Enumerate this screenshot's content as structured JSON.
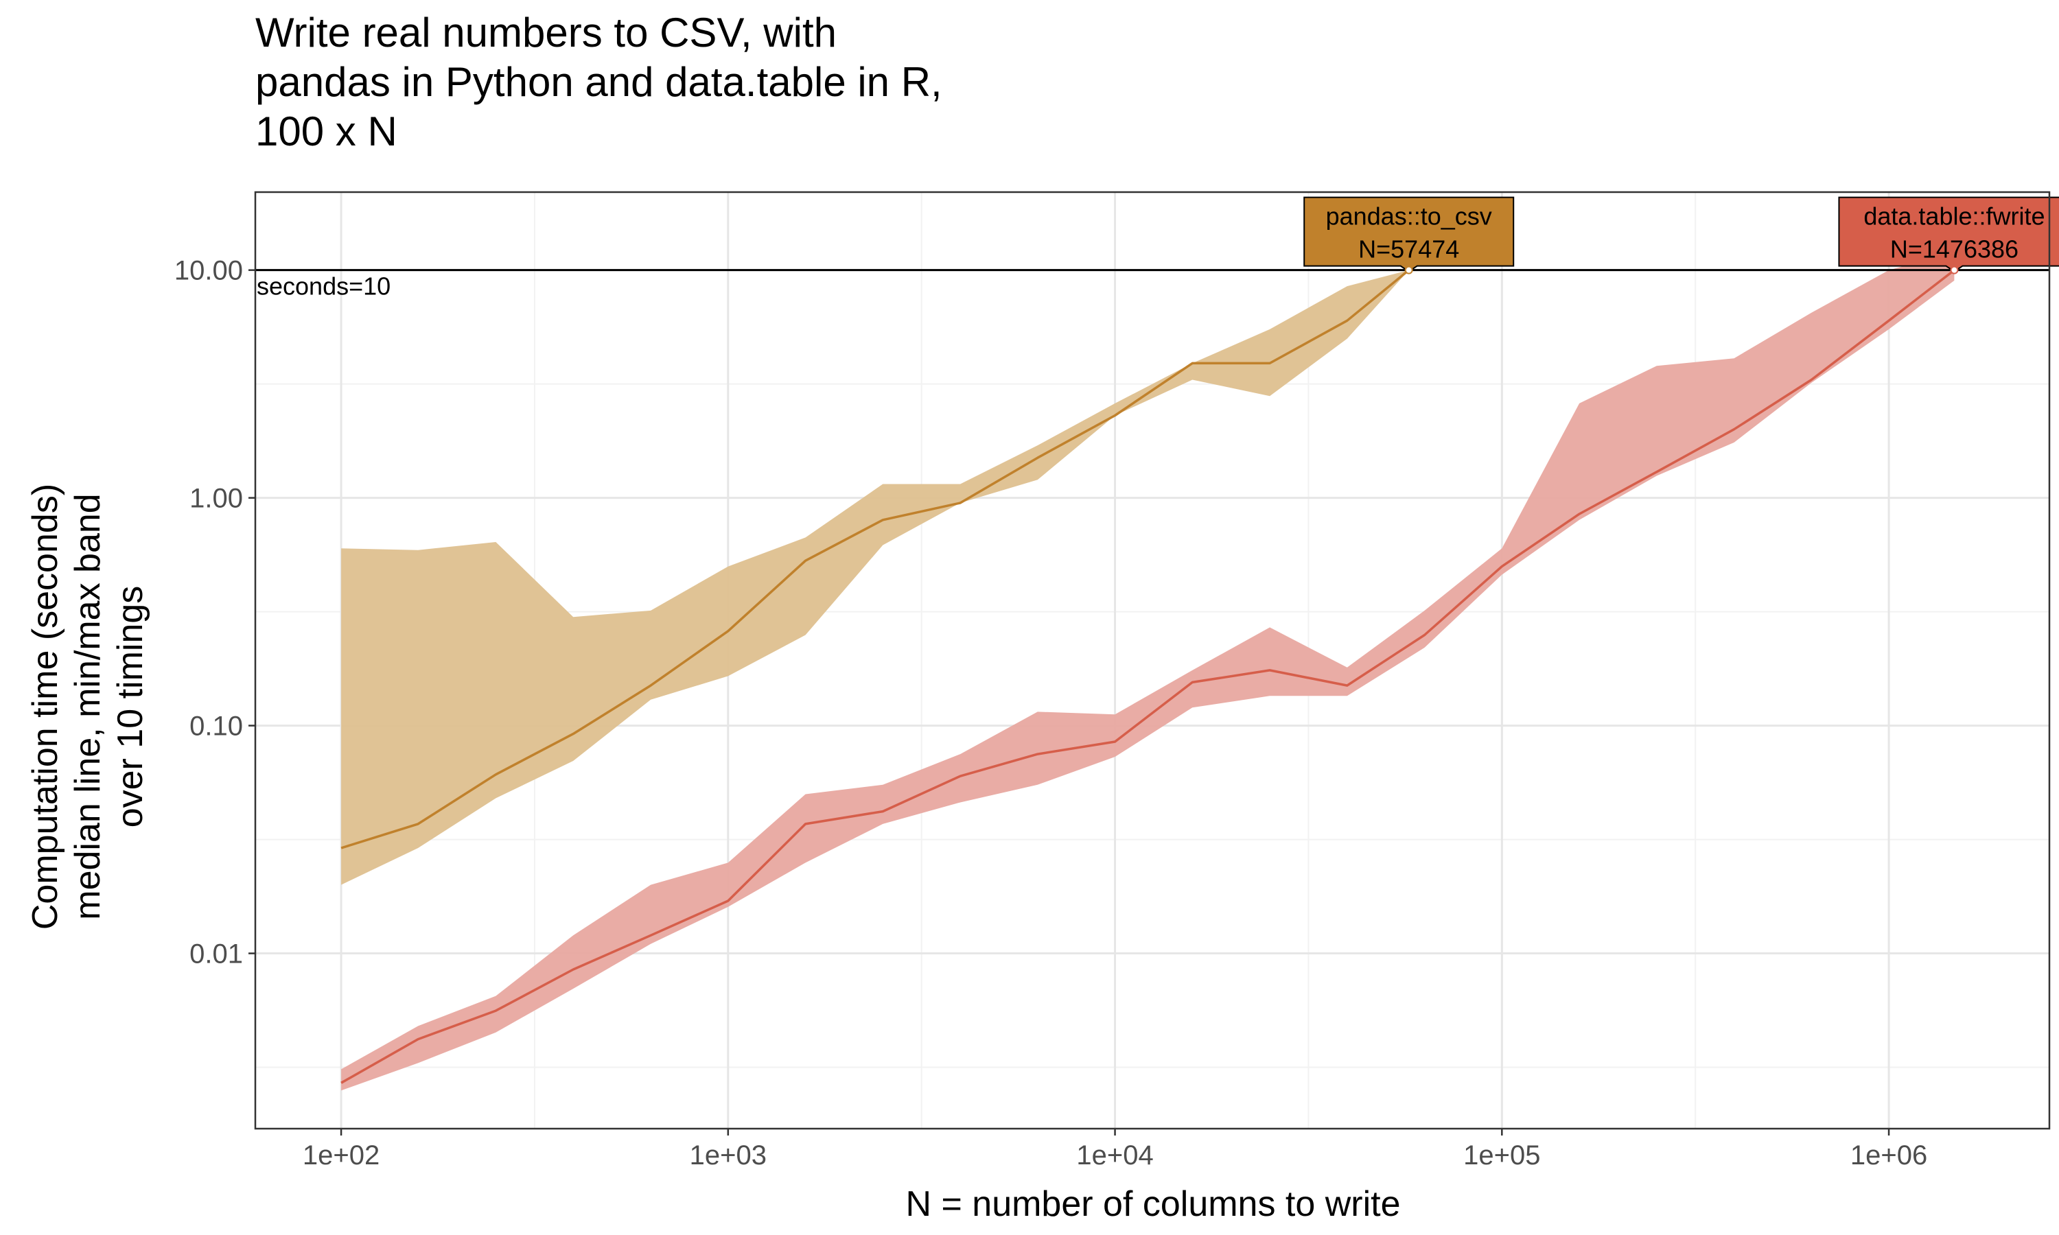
{
  "chart_data": {
    "type": "line",
    "title_lines": [
      "Write real numbers to CSV, with",
      "pandas in Python and data.table in R,",
      "100 x N"
    ],
    "xlabel": "N = number of columns to write",
    "ylabel_lines": [
      "Computation time (seconds)",
      "median line, min/max band",
      "over 10 timings"
    ],
    "x_scale": "log10",
    "y_scale": "log10",
    "xlim": [
      60,
      2600000
    ],
    "ylim": [
      0.0017,
      22
    ],
    "x_ticks": [
      100,
      1000,
      10000,
      100000,
      1000000
    ],
    "x_tick_labels": [
      "1e+02",
      "1e+03",
      "1e+04",
      "1e+05",
      "1e+06"
    ],
    "y_ticks": [
      0.01,
      0.1,
      1,
      10
    ],
    "y_tick_labels": [
      "0.01",
      "0.10",
      "1.00",
      "10.00"
    ],
    "grid": true,
    "hline": {
      "y": 10,
      "label": "seconds=10",
      "color": "#000000"
    },
    "series": [
      {
        "name": "pandas::to_csv",
        "color": "#C0812C",
        "band_color": "#DEC08F",
        "end_label": "N=57474",
        "x": [
          100,
          158,
          251,
          398,
          631,
          1000,
          1585,
          2512,
          3981,
          6310,
          10000,
          15849,
          25119,
          39811,
          57474
        ],
        "median": [
          0.029,
          0.037,
          0.061,
          0.092,
          0.15,
          0.26,
          0.53,
          0.8,
          0.95,
          1.5,
          2.3,
          3.9,
          3.9,
          6.0,
          10.0
        ],
        "min": [
          0.02,
          0.029,
          0.048,
          0.07,
          0.13,
          0.165,
          0.25,
          0.62,
          0.95,
          1.2,
          2.3,
          3.3,
          2.8,
          5.0,
          10.0
        ],
        "max": [
          0.6,
          0.59,
          0.64,
          0.3,
          0.32,
          0.5,
          0.67,
          1.15,
          1.15,
          1.7,
          2.6,
          3.9,
          5.5,
          8.5,
          10.0
        ]
      },
      {
        "name": "data.table::fwrite",
        "color": "#D65E4A",
        "band_color": "#E8A8A0",
        "end_label": "N=1476386",
        "x": [
          100,
          158,
          251,
          398,
          631,
          1000,
          1585,
          2512,
          3981,
          6310,
          10000,
          15849,
          25119,
          39811,
          63096,
          100000,
          158489,
          251189,
          398107,
          630957,
          1000000,
          1476386
        ],
        "median": [
          0.0027,
          0.0042,
          0.0056,
          0.0085,
          0.012,
          0.017,
          0.037,
          0.042,
          0.06,
          0.075,
          0.085,
          0.155,
          0.175,
          0.15,
          0.25,
          0.5,
          0.85,
          1.3,
          2.0,
          3.3,
          6.0,
          10.0
        ],
        "min": [
          0.0025,
          0.0033,
          0.0045,
          0.007,
          0.011,
          0.016,
          0.025,
          0.037,
          0.046,
          0.055,
          0.073,
          0.12,
          0.135,
          0.135,
          0.22,
          0.46,
          0.8,
          1.25,
          1.75,
          3.2,
          5.5,
          9.0
        ],
        "max": [
          0.0031,
          0.0048,
          0.0065,
          0.012,
          0.02,
          0.025,
          0.05,
          0.055,
          0.075,
          0.115,
          0.112,
          0.175,
          0.27,
          0.18,
          0.32,
          0.6,
          2.6,
          3.8,
          4.1,
          6.5,
          10.0,
          12.0
        ]
      }
    ]
  }
}
